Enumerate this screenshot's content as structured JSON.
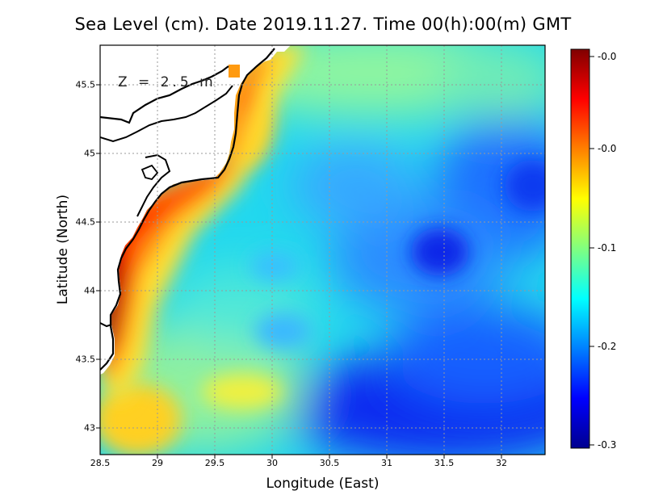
{
  "title": "Sea Level (cm). Date 2019.11.27. Time 00(h):00(m) GMT",
  "depth_label": "Z = 2.5 m",
  "chart_data": {
    "type": "heatmap",
    "title": "Sea Level (cm). Date 2019.11.27. Time 00(h):00(m) GMT",
    "xlabel": "Longitude (East)",
    "ylabel": "Latitude (North)",
    "xlim": [
      28.5,
      32.4
    ],
    "ylim": [
      42.8,
      45.8
    ],
    "x_ticks": [
      "28.5",
      "29",
      "29.5",
      "30",
      "30.5",
      "31",
      "31.5",
      "32"
    ],
    "y_ticks": [
      "43",
      "43.5",
      "44",
      "44.5",
      "45",
      "45.5"
    ],
    "grid": true,
    "colorbar": {
      "ticks": [
        "-0.0",
        "-0.0",
        "-0.1",
        "-0.2",
        "-0.3"
      ],
      "colors": [
        "#00008f",
        "#0000ff",
        "#0080ff",
        "#00ffff",
        "#80ff80",
        "#ffff00",
        "#ff8000",
        "#ff0000",
        "#800000"
      ]
    }
  }
}
